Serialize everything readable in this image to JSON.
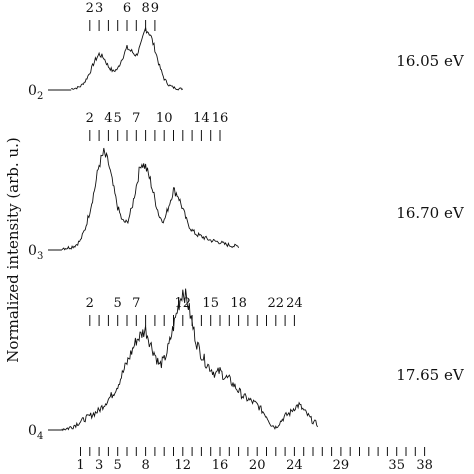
{
  "chart_data": {
    "type": "line",
    "ylabel": "Normalized intensity (arb. u.)",
    "bottom_ticks": {
      "labels": [
        "1",
        "3",
        "5",
        "8",
        "12",
        "16",
        "20",
        "24",
        "29",
        "35",
        "38"
      ],
      "label_positions": [
        1,
        3,
        5,
        8,
        12,
        16,
        20,
        24,
        29,
        35,
        38
      ],
      "marks_from": 1,
      "marks_to": 38
    },
    "panels": [
      {
        "energy_label": "16.05 eV",
        "baseline_label": "0",
        "baseline_sub": "2",
        "peak_labels": [
          "2",
          "3",
          "6",
          "8",
          "9"
        ],
        "peak_positions": [
          2,
          3,
          6,
          8,
          9
        ],
        "bars_from": 2,
        "bars_to": 9,
        "series_x": [
          0,
          0.5,
          1,
          1.5,
          2,
          2.5,
          3,
          3.5,
          4,
          4.5,
          5,
          5.5,
          6,
          6.5,
          7,
          7.5,
          8,
          8.5,
          9,
          9.5,
          10,
          10.5,
          11,
          11.5,
          12
        ],
        "series_y": [
          0.02,
          0.03,
          0.06,
          0.14,
          0.28,
          0.46,
          0.58,
          0.52,
          0.38,
          0.3,
          0.34,
          0.52,
          0.68,
          0.62,
          0.56,
          0.72,
          1.0,
          0.9,
          0.66,
          0.38,
          0.18,
          0.08,
          0.04,
          0.02,
          0.02
        ]
      },
      {
        "energy_label": "16.70 eV",
        "baseline_label": "0",
        "baseline_sub": "3",
        "peak_labels": [
          "2",
          "4",
          "5",
          "7",
          "10",
          "14",
          "16"
        ],
        "peak_positions": [
          2,
          4,
          5,
          7,
          10,
          14,
          16
        ],
        "bars_from": 2,
        "bars_to": 16,
        "series_x": [
          -1,
          -0.5,
          0,
          0.5,
          1,
          1.5,
          2,
          2.5,
          3,
          3.5,
          4,
          4.5,
          5,
          5.5,
          6,
          6.5,
          7,
          7.5,
          8,
          8.5,
          9,
          9.5,
          10,
          10.5,
          11,
          11.5,
          12,
          12.5,
          13,
          13.5,
          14,
          14.5,
          15,
          15.5,
          16,
          16.5,
          17,
          17.5,
          18
        ],
        "series_y": [
          0.02,
          0.02,
          0.03,
          0.05,
          0.1,
          0.22,
          0.4,
          0.62,
          0.88,
          1.0,
          0.9,
          0.66,
          0.44,
          0.3,
          0.28,
          0.42,
          0.66,
          0.9,
          0.86,
          0.72,
          0.52,
          0.34,
          0.3,
          0.46,
          0.62,
          0.56,
          0.42,
          0.28,
          0.2,
          0.16,
          0.14,
          0.12,
          0.1,
          0.09,
          0.08,
          0.06,
          0.05,
          0.04,
          0.04
        ]
      },
      {
        "energy_label": "17.65 eV",
        "baseline_label": "0",
        "baseline_sub": "4",
        "peak_labels": [
          "2",
          "5",
          "7",
          "12",
          "15",
          "18",
          "22",
          "24"
        ],
        "peak_positions": [
          2,
          5,
          7,
          12,
          15,
          18,
          22,
          24
        ],
        "bars_from": 2,
        "bars_to": 24,
        "series_x": [
          -1,
          -0.5,
          0,
          0.5,
          1,
          1.5,
          2,
          2.5,
          3,
          3.5,
          4,
          4.5,
          5,
          5.5,
          6,
          6.5,
          7,
          7.5,
          8,
          8.5,
          9,
          9.5,
          10,
          10.5,
          11,
          11.5,
          12,
          12.5,
          13,
          13.5,
          14,
          14.5,
          15,
          15.5,
          16,
          16.5,
          17,
          17.5,
          18,
          18.5,
          19,
          19.5,
          20,
          20.5,
          21,
          21.5,
          22,
          22.5,
          23,
          23.5,
          24,
          24.5,
          25,
          25.5,
          26,
          26.5
        ],
        "series_y": [
          0.01,
          0.01,
          0.02,
          0.04,
          0.06,
          0.08,
          0.1,
          0.12,
          0.14,
          0.18,
          0.22,
          0.26,
          0.32,
          0.4,
          0.48,
          0.56,
          0.64,
          0.68,
          0.72,
          0.62,
          0.54,
          0.46,
          0.5,
          0.6,
          0.74,
          0.88,
          1.0,
          0.92,
          0.76,
          0.62,
          0.54,
          0.48,
          0.44,
          0.4,
          0.42,
          0.38,
          0.36,
          0.32,
          0.28,
          0.24,
          0.22,
          0.2,
          0.18,
          0.14,
          0.1,
          0.04,
          0.02,
          0.06,
          0.1,
          0.12,
          0.16,
          0.18,
          0.14,
          0.1,
          0.06,
          0.04
        ]
      }
    ]
  }
}
